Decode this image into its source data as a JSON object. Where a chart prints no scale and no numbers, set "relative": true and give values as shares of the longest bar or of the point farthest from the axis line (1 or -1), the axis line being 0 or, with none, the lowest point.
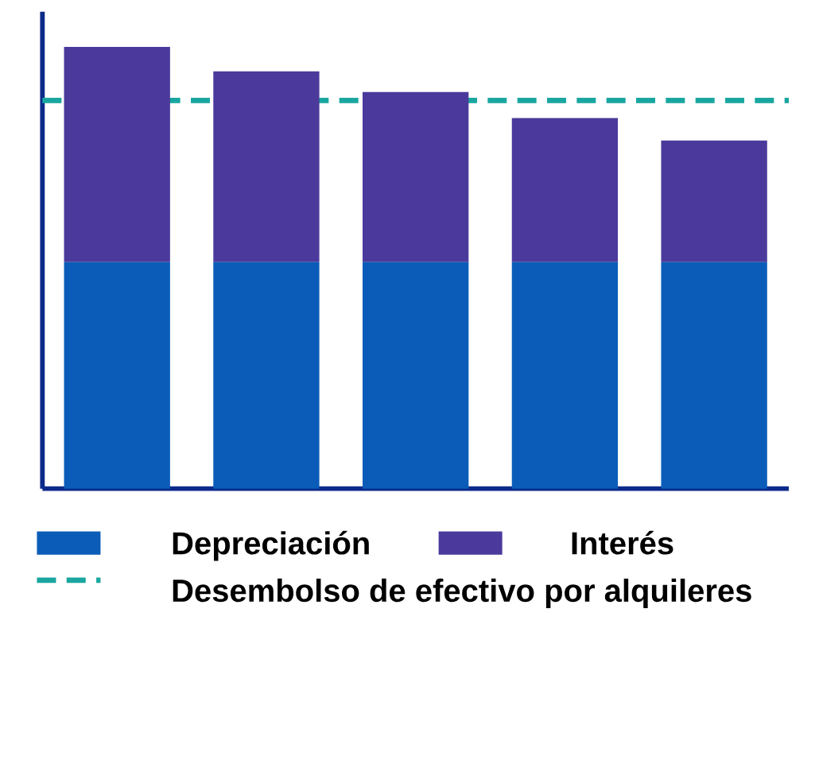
{
  "chart_data": {
    "type": "bar",
    "stacked": true,
    "relative": true,
    "categories": [
      null,
      null,
      null,
      null,
      null
    ],
    "series": [
      {
        "name": "Depreciación",
        "color": "#0a5cb8",
        "values": [
          0.513,
          0.513,
          0.513,
          0.513,
          0.513
        ]
      },
      {
        "name": "Interés",
        "color": "#4b3a9c",
        "values": [
          0.487,
          0.432,
          0.385,
          0.326,
          0.275
        ]
      }
    ],
    "ref_lines": [
      {
        "axis": "y",
        "value": 0.879,
        "label": "Desembolso de efectivo por alquileres",
        "color": "#1aa6a0",
        "line_style": "dashed"
      }
    ],
    "legend": "bottom"
  }
}
